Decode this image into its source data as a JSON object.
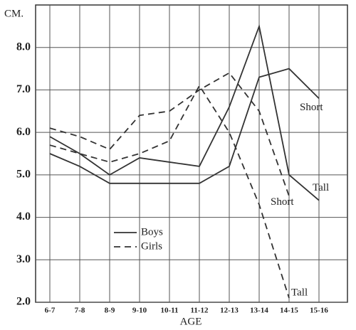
{
  "chart_data": {
    "type": "line",
    "y_unit": "CM.",
    "x_label": "AGE",
    "categories": [
      "6-7",
      "7-8",
      "8-9",
      "9-10",
      "10-11",
      "11-12",
      "12-13",
      "13-14",
      "14-15",
      "15-16"
    ],
    "ylim": [
      2,
      9
    ],
    "yticks": [
      {
        "value": 2,
        "label": "2.0"
      },
      {
        "value": 3,
        "label": "3.0"
      },
      {
        "value": 4,
        "label": "4.0"
      },
      {
        "value": 5,
        "label": "5.0"
      },
      {
        "value": 6,
        "label": "6.0"
      },
      {
        "value": 7,
        "label": "7.0"
      },
      {
        "value": 8,
        "label": "8.0"
      }
    ],
    "grid": true,
    "legend": [
      {
        "label": "Boys",
        "dashed": false,
        "color": "#333333"
      },
      {
        "label": "Girls",
        "dashed": true,
        "color": "#333333"
      }
    ],
    "series": [
      {
        "name": "Short",
        "legend": 0,
        "values": [
          5.5,
          5.2,
          4.8,
          4.8,
          4.8,
          4.8,
          5.2,
          7.3,
          7.5,
          6.8
        ]
      },
      {
        "name": "Tall",
        "legend": 0,
        "values": [
          5.9,
          5.5,
          5.0,
          5.4,
          5.3,
          5.2,
          6.6,
          8.5,
          5.0,
          4.4
        ]
      },
      {
        "name": "Short",
        "legend": 1,
        "values": [
          6.1,
          5.9,
          5.6,
          6.4,
          6.5,
          7.0,
          7.4,
          6.5,
          4.5,
          null
        ]
      },
      {
        "name": "Tall",
        "legend": 1,
        "values": [
          5.7,
          5.5,
          5.3,
          5.5,
          5.8,
          7.1,
          6.0,
          4.3,
          2.1,
          null
        ]
      }
    ]
  }
}
